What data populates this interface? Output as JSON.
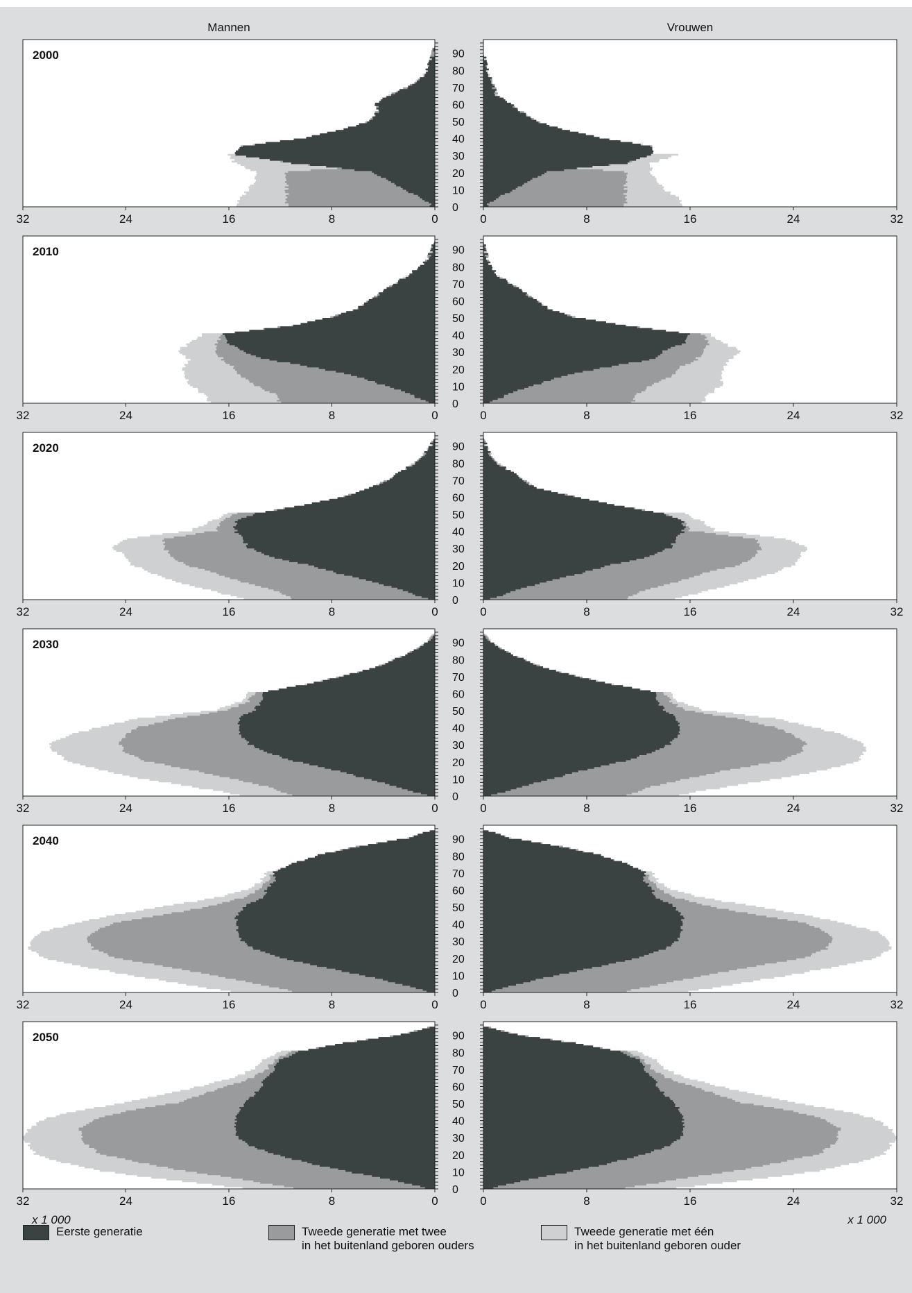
{
  "chart_data": {
    "type": "area",
    "subtype": "population pyramid",
    "sides": [
      "Mannen",
      "Vrouwen"
    ],
    "unit_label": "x 1 000",
    "xlim": [
      0,
      32
    ],
    "x_ticks": [
      0,
      8,
      16,
      24,
      32
    ],
    "y_ticks": [
      0,
      10,
      20,
      30,
      40,
      50,
      60,
      70,
      80,
      90
    ],
    "ylim": [
      0,
      95
    ],
    "legend_position": "bottom",
    "series": [
      {
        "name": "Eerste generatie",
        "color": "#3b4342"
      },
      {
        "name": "Tweede generatie met twee\nin het buitenland geboren ouders",
        "color": "#999b9c"
      },
      {
        "name": "Tweede generatie met één\nin het buitenland geboren ouder",
        "color": "#cfd0d2"
      }
    ],
    "age_points": [
      0,
      5,
      10,
      15,
      20,
      25,
      30,
      35,
      40,
      45,
      50,
      55,
      60,
      65,
      70,
      75,
      80,
      85,
      90,
      95
    ],
    "panels": [
      {
        "year": "2000",
        "men": {
          "first": [
            0.3,
            1,
            2.5,
            3.5,
            5,
            11,
            15.5,
            15,
            10,
            7,
            5,
            4.5,
            4.5,
            3.5,
            2,
            1,
            0.6,
            0.3,
            0.1,
            0
          ],
          "second_two": [
            11.5,
            11.5,
            11.5,
            11.5,
            11.5,
            2,
            0.5,
            0.2,
            0.1,
            0,
            0,
            0,
            0,
            0,
            0,
            0,
            0,
            0,
            0,
            0
          ],
          "second_one": [
            15.5,
            15,
            14.5,
            14,
            14,
            15.5,
            16,
            0,
            0,
            0,
            0,
            0,
            0,
            0,
            0,
            0,
            0,
            0,
            0,
            0
          ]
        },
        "women": {
          "first": [
            0.3,
            1,
            2.5,
            3.5,
            5,
            11,
            13,
            13,
            9,
            6,
            4,
            3,
            2,
            1,
            0.8,
            0.5,
            0.3,
            0.1,
            0,
            0
          ],
          "second_two": [
            11,
            11,
            11,
            11,
            11,
            2,
            0.5,
            0.2,
            0.1,
            0,
            0,
            0,
            0,
            0,
            0,
            0,
            0,
            0,
            0,
            0
          ],
          "second_one": [
            15.5,
            15,
            14,
            13.5,
            13,
            13,
            15,
            0,
            0,
            0,
            0,
            0,
            0,
            0,
            0,
            0,
            0,
            0,
            0,
            0
          ]
        }
      },
      {
        "year": "2010",
        "men": {
          "first": [
            0.5,
            2,
            4,
            6,
            9,
            13,
            15,
            16,
            16.5,
            11,
            8,
            6,
            5,
            4,
            3,
            2,
            1,
            0.5,
            0.2,
            0
          ],
          "second_two": [
            12,
            12.5,
            14,
            15,
            15.5,
            16.5,
            17,
            17,
            16.5,
            0,
            0,
            0,
            0,
            0,
            0,
            0,
            0,
            0,
            0,
            0
          ],
          "second_one": [
            17.5,
            18,
            19,
            19.5,
            19.5,
            19,
            20,
            19,
            18,
            0,
            0,
            0,
            0,
            0,
            0,
            0,
            0,
            0,
            0,
            0
          ]
        },
        "women": {
          "first": [
            0.5,
            2,
            4,
            6,
            9,
            13,
            14,
            15.5,
            16,
            11,
            7,
            5,
            4,
            3,
            2,
            1,
            0.5,
            0.3,
            0.1,
            0
          ],
          "second_two": [
            11.5,
            12,
            13,
            14.5,
            15,
            16.5,
            17,
            17.5,
            17,
            0,
            0,
            0,
            0,
            0,
            0,
            0,
            0,
            0,
            0,
            0
          ],
          "second_one": [
            17,
            17.5,
            18.5,
            18.5,
            18.5,
            19,
            20,
            18.5,
            17.5,
            0,
            0,
            0,
            0,
            0,
            0,
            0,
            0,
            0,
            0,
            0
          ]
        }
      },
      {
        "year": "2020",
        "men": {
          "first": [
            0.6,
            2.5,
            5,
            7.5,
            10,
            13,
            14.5,
            15,
            15.5,
            15.5,
            14,
            10,
            7,
            5,
            3.5,
            2.5,
            1.5,
            0.8,
            0.3,
            0
          ],
          "second_two": [
            11,
            12.5,
            15,
            17,
            19.5,
            20.5,
            21,
            21,
            17,
            16.5,
            15.5,
            0,
            0,
            0,
            0,
            0,
            0,
            0,
            0,
            0
          ],
          "second_one": [
            15,
            17.5,
            20,
            22,
            23.5,
            24,
            25,
            24,
            19,
            17.5,
            16,
            0,
            0,
            0,
            0,
            0,
            0,
            0,
            0,
            0
          ]
        },
        "women": {
          "first": [
            0.6,
            2.5,
            5,
            7.5,
            10,
            13,
            14.5,
            15,
            15.5,
            15.5,
            14,
            10,
            7,
            4,
            3,
            2,
            1,
            0.5,
            0.2,
            0
          ],
          "second_two": [
            11,
            12.5,
            15,
            17,
            20,
            21,
            21.5,
            21,
            16,
            15.5,
            14,
            0,
            0,
            0,
            0,
            0,
            0,
            0,
            0,
            0
          ],
          "second_one": [
            15,
            17.5,
            20,
            22.5,
            24,
            24.5,
            25,
            23.5,
            18,
            17,
            15.5,
            0,
            0,
            0,
            0,
            0,
            0,
            0,
            0,
            0
          ]
        }
      },
      {
        "year": "2030",
        "men": {
          "first": [
            0.6,
            3,
            5.5,
            8,
            11,
            13,
            14.5,
            15,
            15.3,
            15.3,
            14,
            13.5,
            13.5,
            10,
            7,
            4.5,
            3,
            1.5,
            0.5,
            0
          ],
          "second_two": [
            11,
            13,
            16,
            19,
            22.5,
            24,
            24.5,
            24,
            23,
            20,
            16,
            14.5,
            14,
            0,
            0,
            0,
            0,
            0,
            0,
            0
          ],
          "second_one": [
            15,
            19,
            23,
            26,
            28.5,
            29.5,
            30,
            28.5,
            26,
            23,
            17,
            15,
            14.5,
            0,
            0,
            0,
            0,
            0,
            0,
            0
          ]
        },
        "women": {
          "first": [
            0.6,
            3,
            5.5,
            8,
            11,
            13,
            14.5,
            15,
            15.3,
            15,
            14,
            13.5,
            13.5,
            10,
            7,
            4.5,
            3,
            1.5,
            0.5,
            0
          ],
          "second_two": [
            11,
            13,
            16,
            19,
            23,
            24.5,
            25,
            24,
            22.5,
            19.5,
            15.5,
            14.5,
            14,
            0,
            0,
            0,
            0,
            0,
            0,
            0
          ],
          "second_one": [
            15,
            19,
            23,
            26.5,
            29,
            29.5,
            29.5,
            28,
            25.5,
            22.5,
            17,
            15,
            14.5,
            0,
            0,
            0,
            0,
            0,
            0,
            0
          ]
        }
      },
      {
        "year": "2040",
        "men": {
          "first": [
            0.6,
            3,
            6,
            9,
            12,
            14,
            15,
            15.3,
            15.5,
            15.3,
            14.8,
            13.5,
            13,
            12.5,
            12.5,
            11,
            9,
            6,
            2,
            0
          ],
          "second_two": [
            11,
            14,
            17.5,
            21,
            25,
            26.5,
            27,
            26.5,
            25,
            21,
            17.5,
            15,
            13.5,
            13,
            12.5,
            0,
            0,
            0,
            0,
            0
          ],
          "second_one": [
            16,
            20,
            24,
            27.5,
            30.5,
            31.5,
            31.5,
            30.5,
            28,
            25,
            21,
            17,
            14.5,
            13.5,
            13,
            0,
            0,
            0,
            0,
            0
          ]
        },
        "women": {
          "first": [
            0.6,
            3,
            6,
            9,
            12,
            14,
            15,
            15.3,
            15.5,
            15.3,
            14.8,
            13.5,
            13,
            12.5,
            12.5,
            11,
            9,
            6,
            2,
            0
          ],
          "second_two": [
            11,
            14,
            17.5,
            21,
            25,
            26.5,
            27,
            26.5,
            25,
            21,
            17.5,
            15,
            13.5,
            13,
            12.5,
            0,
            0,
            0,
            0,
            0
          ],
          "second_one": [
            16,
            20,
            24,
            27.5,
            30.5,
            31.5,
            31.5,
            30.5,
            28,
            25,
            21,
            17,
            14.5,
            13.5,
            13,
            0,
            0,
            0,
            0,
            0
          ]
        }
      },
      {
        "year": "2050",
        "men": {
          "first": [
            0.6,
            3.5,
            7,
            10,
            12.5,
            14.5,
            15.3,
            15.5,
            15.5,
            15.3,
            14.8,
            14,
            13.5,
            13,
            12.5,
            12,
            10.5,
            7,
            2.5,
            0
          ],
          "second_two": [
            11,
            15,
            19.5,
            23,
            26,
            27,
            27.5,
            27.5,
            26.5,
            24,
            20,
            18,
            16,
            14,
            13,
            12.5,
            11,
            0,
            0,
            0
          ],
          "second_one": [
            15,
            21,
            26,
            29,
            31,
            31.5,
            32,
            31.5,
            30.5,
            28,
            24,
            21,
            18,
            15.5,
            14,
            13.5,
            12,
            0,
            0,
            0
          ]
        },
        "women": {
          "first": [
            0.6,
            3.5,
            7,
            10,
            12.5,
            14.5,
            15.3,
            15.5,
            15.5,
            15.3,
            14.8,
            14,
            13.5,
            13,
            12.5,
            12,
            10.5,
            7,
            2.5,
            0
          ],
          "second_two": [
            11,
            15,
            19.5,
            23,
            26,
            27,
            27.5,
            27.5,
            26.5,
            24,
            20,
            18,
            16,
            14,
            13,
            12.5,
            11,
            0,
            0,
            0
          ],
          "second_one": [
            15,
            21,
            26,
            29,
            31,
            31.5,
            32,
            31.5,
            30.5,
            28,
            24,
            21,
            18,
            15.5,
            14,
            13.5,
            12,
            0,
            0,
            0
          ]
        }
      }
    ]
  }
}
